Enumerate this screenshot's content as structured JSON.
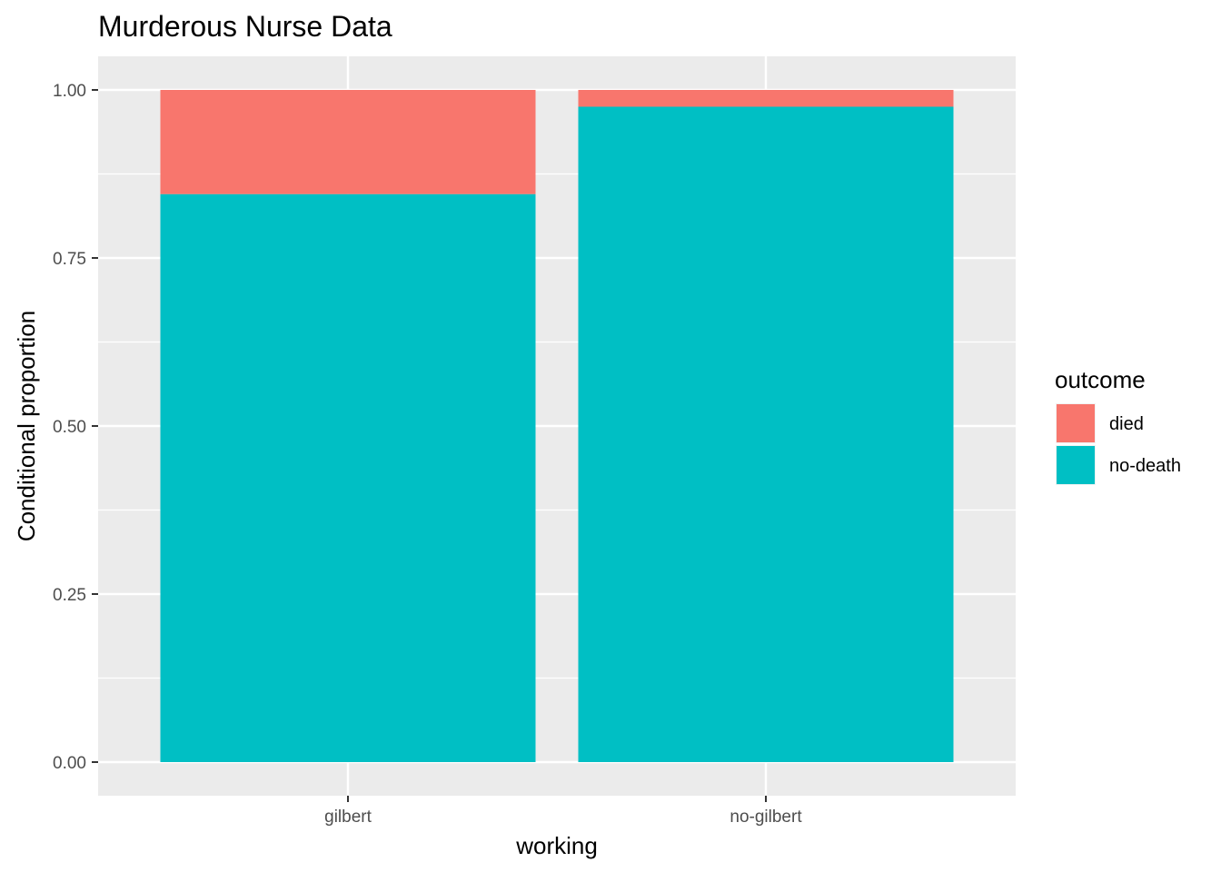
{
  "chart_data": {
    "type": "bar",
    "stacked": true,
    "title": "Murderous Nurse Data",
    "xlabel": "working",
    "ylabel": "Conditional proportion",
    "categories": [
      "gilbert",
      "no-gilbert"
    ],
    "ylim": [
      0,
      1
    ],
    "yticks": [
      0.0,
      0.25,
      0.5,
      0.75,
      1.0
    ],
    "ytick_labels": [
      "0.00",
      "0.25",
      "0.50",
      "0.75",
      "1.00"
    ],
    "grid": true,
    "legend": {
      "title": "outcome",
      "position": "right"
    },
    "series": [
      {
        "name": "died",
        "color": "#F8766D",
        "values": [
          0.155,
          0.025
        ]
      },
      {
        "name": "no-death",
        "color": "#00BFC4",
        "values": [
          0.845,
          0.975
        ]
      }
    ]
  }
}
